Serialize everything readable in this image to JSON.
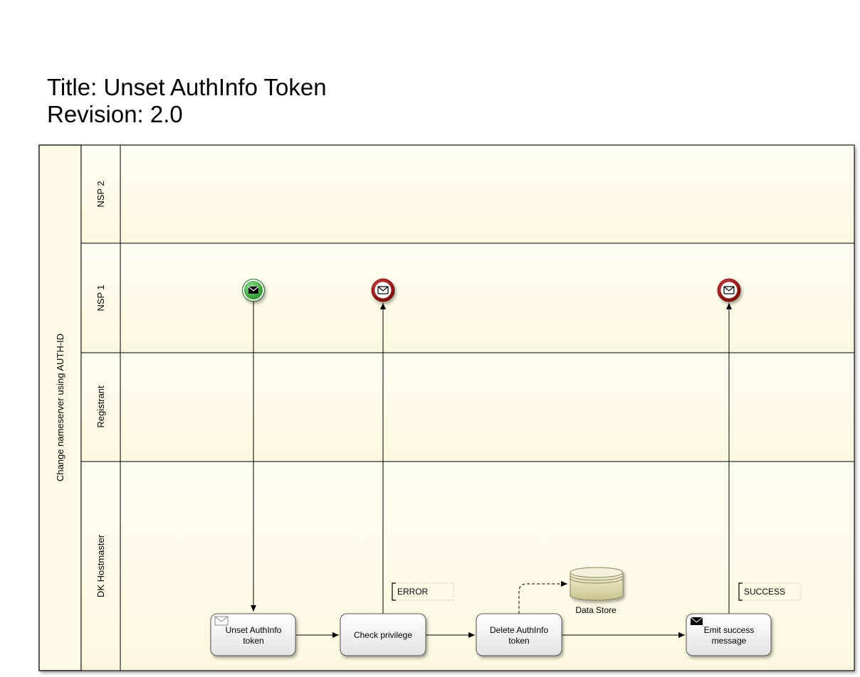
{
  "header": {
    "title": "Title: Unset AuthInfo Token",
    "revision": "Revision: 2.0"
  },
  "pool": {
    "name": "Change nameserver using AUTH-ID",
    "lanes": [
      "NSP 2",
      "NSP 1",
      "Registrant",
      "DK Hostmaster"
    ]
  },
  "tasks": {
    "unset": [
      "Unset AuthInfo",
      "token"
    ],
    "check": "Check privilege",
    "delete": [
      "Delete AuthInfo",
      "token"
    ],
    "emit": [
      "Emit success",
      "message"
    ]
  },
  "data_store": "Data Store",
  "annotations": {
    "error": "ERROR",
    "success": "SUCCESS"
  },
  "colors": {
    "lane_fill": "#fefdea",
    "start_event": "#2e9e2e",
    "end_event": "#a01818",
    "task_fill": "#f6f6f6",
    "data_store": "#d9d6a8"
  }
}
